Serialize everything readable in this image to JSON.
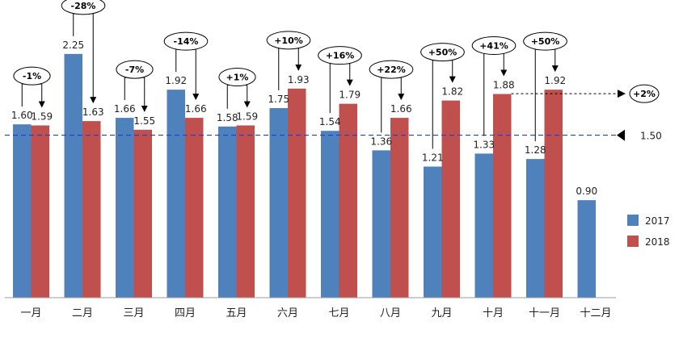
{
  "chart_data": {
    "type": "bar",
    "categories": [
      "一月",
      "二月",
      "三月",
      "四月",
      "五月",
      "六月",
      "七月",
      "八月",
      "九月",
      "十月",
      "十一月",
      "十二月"
    ],
    "series": [
      {
        "name": "2017",
        "color": "#4f81bd",
        "values": [
          1.6,
          2.25,
          1.66,
          1.92,
          1.58,
          1.75,
          1.54,
          1.36,
          1.21,
          1.33,
          1.28,
          0.9
        ]
      },
      {
        "name": "2018",
        "color": "#c0504d",
        "values": [
          1.59,
          1.63,
          1.55,
          1.66,
          1.59,
          1.93,
          1.79,
          1.66,
          1.82,
          1.88,
          1.92,
          null
        ]
      }
    ],
    "value_labels": {
      "s2017": [
        "1.60",
        "2.25",
        "1.66",
        "1.92",
        "1.58",
        "1.75",
        "1.54",
        "1.36",
        "1.21",
        "1.33",
        "1.28",
        "0.90"
      ],
      "s2018": [
        "1.59",
        "1.63",
        "1.55",
        "1.66",
        "1.59",
        "1.93",
        "1.79",
        "1.66",
        "1.82",
        "1.88",
        "1.92"
      ]
    },
    "change_labels": [
      "-1%",
      "-28%",
      "-7%",
      "-14%",
      "+1%",
      "+10%",
      "+16%",
      "+22%",
      "+50%",
      "+41%",
      "+50%"
    ],
    "reference_line": {
      "value": 1.5,
      "label": "1.50",
      "color": "#1f3fd1"
    },
    "trend_annotation": {
      "label": "+2%",
      "value": 1.92
    },
    "legend": {
      "position": "right",
      "entries": [
        "2017",
        "2018"
      ]
    },
    "ylim": [
      0,
      2.45
    ],
    "grid": false,
    "title": "",
    "xlabel": "",
    "ylabel": ""
  }
}
